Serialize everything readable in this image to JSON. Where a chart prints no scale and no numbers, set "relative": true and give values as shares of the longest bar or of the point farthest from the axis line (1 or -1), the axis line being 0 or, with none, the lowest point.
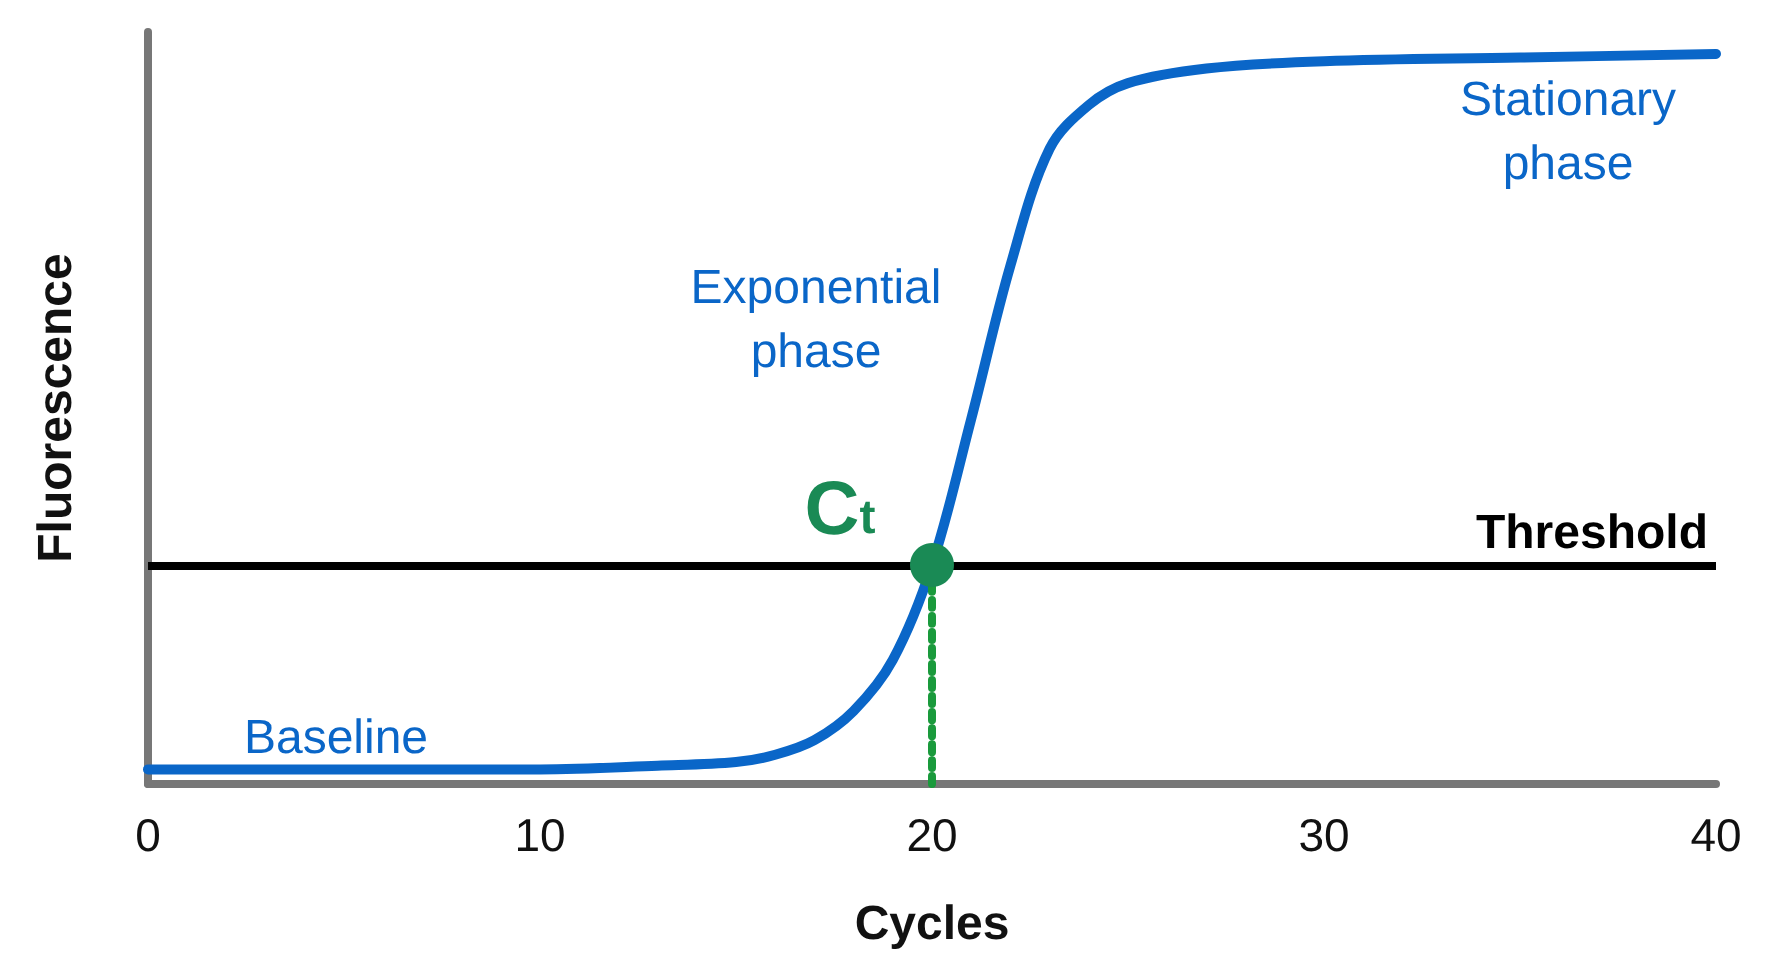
{
  "chart_data": {
    "type": "line",
    "relative": true,
    "xlabel": "Cycles",
    "ylabel": "Fluorescence",
    "xlim": [
      0,
      40
    ],
    "xticks": [
      0,
      10,
      20,
      30,
      40
    ],
    "grid": false,
    "marker": "none",
    "series": [
      {
        "color": "#0a66c8",
        "line_style": "solid",
        "x": [
          0,
          5,
          10,
          13,
          15,
          16,
          17,
          18,
          19,
          20,
          21,
          22,
          23,
          24,
          25,
          27,
          30,
          35,
          40
        ],
        "values": [
          0.02,
          0.02,
          0.02,
          0.025,
          0.03,
          0.04,
          0.06,
          0.1,
          0.17,
          0.3,
          0.5,
          0.71,
          0.87,
          0.93,
          0.96,
          0.98,
          0.99,
          0.995,
          1
        ]
      },
      {
        "type": "line",
        "color": "#1a9a3c",
        "line_style": "dotted",
        "x": [
          20,
          20
        ],
        "values": [
          0,
          0.3
        ]
      },
      {
        "type": "scatter",
        "color": "#1a8a55",
        "marker": "circle",
        "x": [
          20
        ],
        "values": [
          0.3
        ]
      }
    ],
    "ref_lines": [
      {
        "axis": "y",
        "value": 0.3,
        "label": "Threshold",
        "color": "#000000",
        "line_style": "solid"
      }
    ],
    "annotations": [
      "Baseline",
      "Exponential phase",
      "Stationary phase",
      "C$_{t}$"
    ]
  }
}
